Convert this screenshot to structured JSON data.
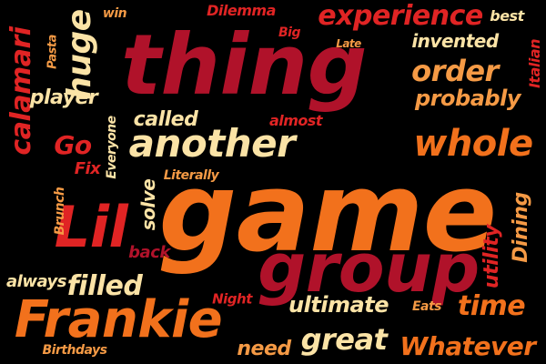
{
  "palette": {
    "crimson": "#b0122a",
    "red": "#e02424",
    "orange": "#f2711c",
    "light_orange": "#f59a45",
    "cream": "#fbe3a6"
  },
  "words": [
    {
      "key": "thing",
      "text": "thing",
      "color": "crimson"
    },
    {
      "key": "game",
      "text": "game",
      "color": "orange"
    },
    {
      "key": "group",
      "text": "group",
      "color": "crimson"
    },
    {
      "key": "Frankie",
      "text": "Frankie",
      "color": "orange"
    },
    {
      "key": "Lil",
      "text": "Lil",
      "color": "red"
    },
    {
      "key": "another",
      "text": "another",
      "color": "cream"
    },
    {
      "key": "whole",
      "text": "whole",
      "color": "orange"
    },
    {
      "key": "experience",
      "text": "experience",
      "color": "red"
    },
    {
      "key": "order",
      "text": "order",
      "color": "light_orange"
    },
    {
      "key": "probably",
      "text": "probably",
      "color": "light_orange"
    },
    {
      "key": "invented",
      "text": "invented",
      "color": "cream"
    },
    {
      "key": "huge",
      "text": "huge",
      "color": "cream"
    },
    {
      "key": "calamari",
      "text": "calamari",
      "color": "red"
    },
    {
      "key": "player",
      "text": "player",
      "color": "cream"
    },
    {
      "key": "called",
      "text": "called",
      "color": "cream"
    },
    {
      "key": "almost",
      "text": "almost",
      "color": "red"
    },
    {
      "key": "Go",
      "text": "Go",
      "color": "red"
    },
    {
      "key": "Fix",
      "text": "Fix",
      "color": "red"
    },
    {
      "key": "Everyone",
      "text": "Everyone",
      "color": "cream"
    },
    {
      "key": "Literally",
      "text": "Literally",
      "color": "light_orange"
    },
    {
      "key": "solve",
      "text": "solve",
      "color": "cream"
    },
    {
      "key": "Brunch",
      "text": "Brunch",
      "color": "light_orange"
    },
    {
      "key": "back",
      "text": "back",
      "color": "crimson"
    },
    {
      "key": "always",
      "text": "always",
      "color": "cream"
    },
    {
      "key": "filled",
      "text": "filled",
      "color": "cream"
    },
    {
      "key": "Night",
      "text": "Night",
      "color": "red"
    },
    {
      "key": "ultimate",
      "text": "ultimate",
      "color": "cream"
    },
    {
      "key": "Eats",
      "text": "Eats",
      "color": "light_orange"
    },
    {
      "key": "time",
      "text": "time",
      "color": "orange"
    },
    {
      "key": "great",
      "text": "great",
      "color": "cream"
    },
    {
      "key": "need",
      "text": "need",
      "color": "light_orange"
    },
    {
      "key": "Whatever",
      "text": "Whatever",
      "color": "orange"
    },
    {
      "key": "Birthdays",
      "text": "Birthdays",
      "color": "light_orange"
    },
    {
      "key": "utility",
      "text": "utility",
      "color": "red"
    },
    {
      "key": "Dining",
      "text": "Dining",
      "color": "light_orange"
    },
    {
      "key": "Italian",
      "text": "Italian",
      "color": "red"
    },
    {
      "key": "best",
      "text": "best",
      "color": "cream"
    },
    {
      "key": "win",
      "text": "win",
      "color": "light_orange"
    },
    {
      "key": "Dilemma",
      "text": "Dilemma",
      "color": "red"
    },
    {
      "key": "Big",
      "text": "Big",
      "color": "red"
    },
    {
      "key": "Pasta",
      "text": "Pasta",
      "color": "light_orange"
    },
    {
      "key": "Late",
      "text": "Late",
      "color": "light_orange"
    }
  ]
}
